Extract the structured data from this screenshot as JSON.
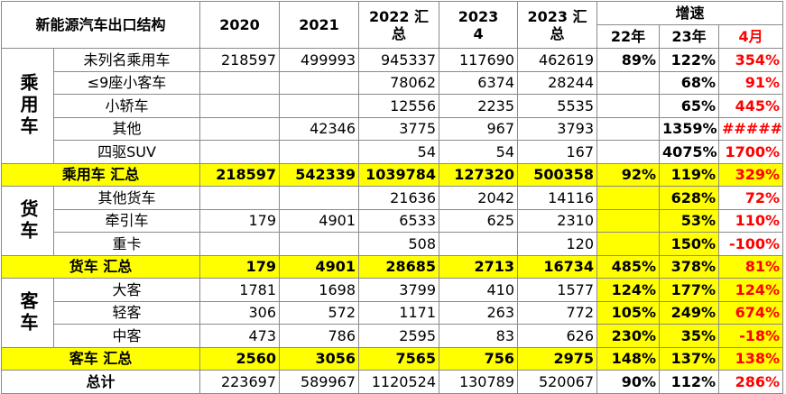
{
  "header": {
    "title": "新能源汽车出口结构",
    "columns": [
      "2020",
      "2021",
      "2022 汇\n总",
      "2023\n4",
      "2023 汇\n总"
    ],
    "growth": "增速",
    "growth_columns": [
      "22年",
      "23年",
      "4月"
    ]
  },
  "groups": [
    {
      "label": "乘用车",
      "rows": [
        [
          "未列名乘用车",
          "218597",
          "499993",
          "945337",
          "117690",
          "462619",
          "89%",
          "122%",
          "354%"
        ],
        [
          "≤9座小客车",
          null,
          null,
          "78062",
          "6374",
          "28244",
          null,
          "68%",
          "91%"
        ],
        [
          "小轿车",
          null,
          null,
          "12556",
          "2235",
          "5535",
          null,
          "65%",
          "445%"
        ],
        [
          "其他",
          null,
          "42346",
          "3775",
          "967",
          "3793",
          null,
          "1359%",
          "#####"
        ],
        [
          "四驱SUV",
          null,
          null,
          "54",
          "54",
          "167",
          null,
          "4075%",
          "1700%"
        ]
      ],
      "total": [
        "乘用车 汇总",
        "218597",
        "542339",
        "1039784",
        "127320",
        "500358",
        "92%",
        "119%",
        "329%"
      ]
    },
    {
      "label": "货车",
      "rows": [
        [
          "其他货车",
          null,
          null,
          "21636",
          "2042",
          "14116",
          null,
          "628%",
          "72%"
        ],
        [
          "牵引车",
          "179",
          "4901",
          "6533",
          "625",
          "2310",
          null,
          "53%",
          "110%"
        ],
        [
          "重卡",
          null,
          null,
          "508",
          null,
          "120",
          null,
          "150%",
          "-100%"
        ]
      ],
      "total": [
        "货车 汇总",
        "179",
        "4901",
        "28685",
        "2713",
        "16734",
        "485%",
        "378%",
        "81%"
      ]
    },
    {
      "label": "客车",
      "rows": [
        [
          "大客",
          "1781",
          "1698",
          "3799",
          "410",
          "1577",
          "124%",
          "177%",
          "124%"
        ],
        [
          "轻客",
          "306",
          "572",
          "1171",
          "263",
          "772",
          "105%",
          "249%",
          "674%"
        ],
        [
          "中客",
          "473",
          "786",
          "2595",
          "83",
          "626",
          "230%",
          "35%",
          "-18%"
        ]
      ],
      "total": [
        "客车 汇总",
        "2560",
        "3056",
        "7565",
        "756",
        "2975",
        "148%",
        "137%",
        "138%"
      ]
    }
  ],
  "grand_total": [
    "总计",
    "223697",
    "589967",
    "1120524",
    "130789",
    "520067",
    "90%",
    "112%",
    "286%"
  ]
}
